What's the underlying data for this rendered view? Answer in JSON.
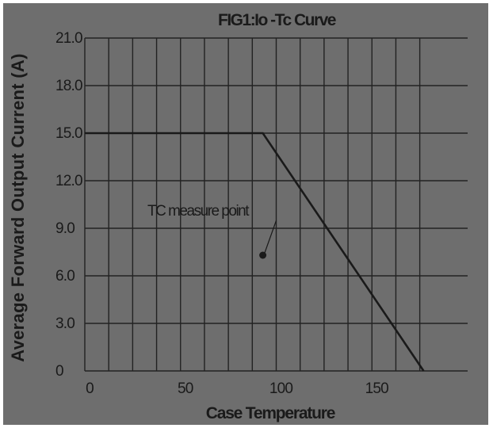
{
  "chart_data": {
    "type": "line",
    "title": "FIG1:Io -Tc Curve",
    "xlabel": "Case Temperature",
    "ylabel": "Average Forward Output Current (A)",
    "x_ticks": [
      "0",
      "50",
      "100",
      "150"
    ],
    "y_ticks": [
      "0",
      "3.0",
      "6.0",
      "9.0",
      "12.0",
      "15.0",
      "18.0",
      "21.0"
    ],
    "xlim": [
      0,
      200
    ],
    "ylim": [
      0,
      21
    ],
    "grid": true,
    "series": [
      {
        "x": [
          0,
          93,
          177
        ],
        "y": [
          15.0,
          15.0,
          0
        ]
      }
    ],
    "annotation": {
      "text": "TC measure point",
      "point": [
        93,
        7.3
      ]
    },
    "colors": {
      "background": "#6e6e6e",
      "line": "#1a1a1a",
      "grid": "#222222"
    }
  }
}
